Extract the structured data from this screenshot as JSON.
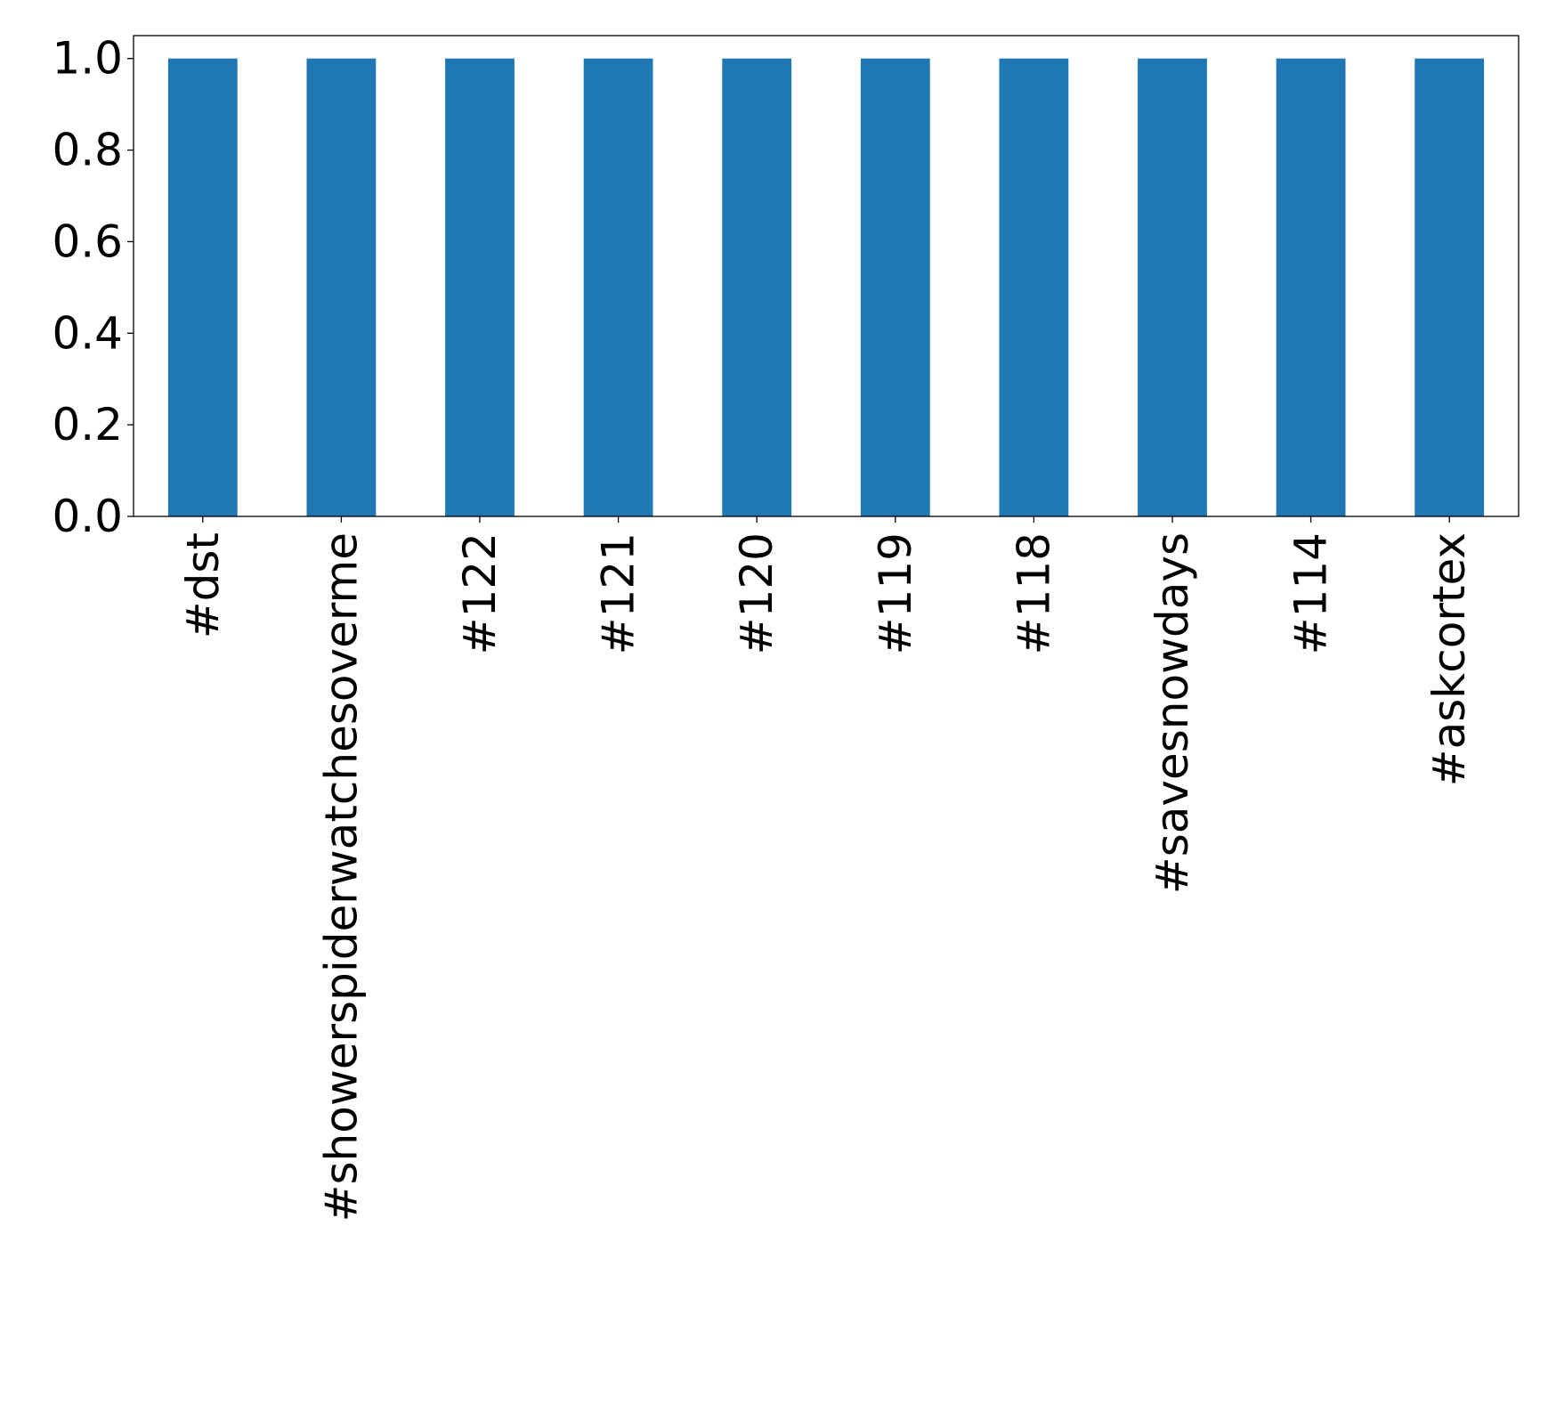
{
  "chart_data": {
    "type": "bar",
    "title": "",
    "xlabel": "",
    "ylabel": "",
    "categories": [
      "#dst",
      "#showerspiderwatchesoverme",
      "#122",
      "#121",
      "#120",
      "#119",
      "#118",
      "#savesnowdays",
      "#114",
      "#askcortex"
    ],
    "values": [
      1.0,
      1.0,
      1.0,
      1.0,
      1.0,
      1.0,
      1.0,
      1.0,
      1.0,
      1.0
    ],
    "ylim": [
      0,
      1.05
    ],
    "yticks": [
      "0.0",
      "0.2",
      "0.4",
      "0.6",
      "0.8",
      "1.0"
    ],
    "bar_color": "#1f77b4",
    "grid": false,
    "legend": "none"
  }
}
